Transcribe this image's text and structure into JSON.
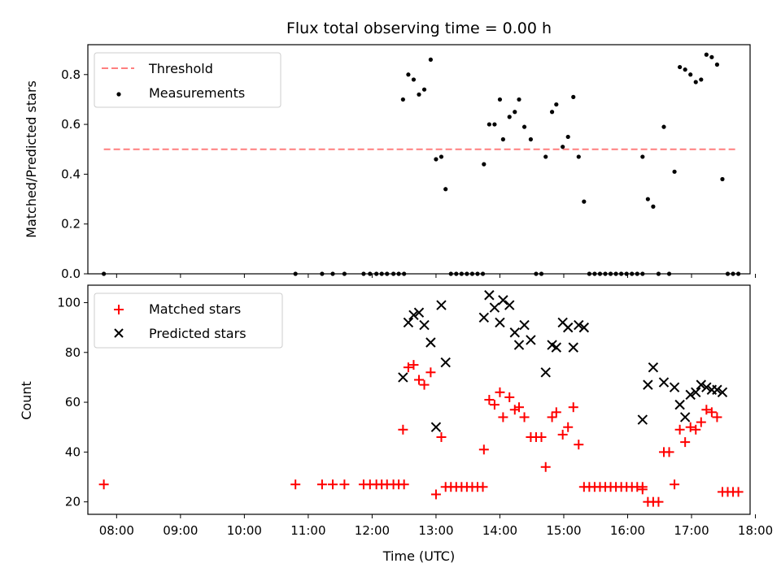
{
  "title": "Flux total observing time = 0.00 h",
  "xlabel": "Time (UTC)",
  "x_tick_labels": [
    "08:00",
    "09:00",
    "10:00",
    "11:00",
    "12:00",
    "13:00",
    "14:00",
    "15:00",
    "16:00",
    "17:00",
    "18:00"
  ],
  "colors": {
    "threshold": "#ff7f7f",
    "measurements": "#000000",
    "matched": "#ff0000",
    "predicted": "#000000"
  },
  "chart_data": [
    {
      "type": "scatter",
      "ylabel": "Matched/Predicted stars",
      "xlim": [
        "07:33",
        "17:55"
      ],
      "ylim": [
        0,
        0.92
      ],
      "y_ticks": [
        "0.0",
        "0.2",
        "0.4",
        "0.6",
        "0.8"
      ],
      "legend": {
        "placement": "upper-left",
        "entries": [
          "Threshold",
          "Measurements"
        ]
      },
      "threshold": {
        "name": "Threshold",
        "y": 0.5,
        "x_start": "07:48",
        "x_end": "17:42"
      },
      "series": [
        {
          "name": "Measurements",
          "points": [
            [
              "07:48",
              0
            ],
            [
              "10:48",
              0
            ],
            [
              "11:13",
              0
            ],
            [
              "11:23",
              0
            ],
            [
              "11:34",
              0
            ],
            [
              "11:52",
              0
            ],
            [
              "11:58",
              0
            ],
            [
              "12:04",
              0
            ],
            [
              "12:09",
              0
            ],
            [
              "12:14",
              0
            ],
            [
              "12:20",
              0
            ],
            [
              "12:25",
              0
            ],
            [
              "12:30",
              0
            ],
            [
              "12:29",
              0.7
            ],
            [
              "12:34",
              0.8
            ],
            [
              "12:39",
              0.78
            ],
            [
              "12:44",
              0.72
            ],
            [
              "12:49",
              0.74
            ],
            [
              "12:55",
              0.86
            ],
            [
              "13:00",
              0.46
            ],
            [
              "13:05",
              0.47
            ],
            [
              "13:09",
              0.34
            ],
            [
              "13:14",
              0
            ],
            [
              "13:19",
              0
            ],
            [
              "13:24",
              0
            ],
            [
              "13:29",
              0
            ],
            [
              "13:34",
              0
            ],
            [
              "13:39",
              0
            ],
            [
              "13:44",
              0
            ],
            [
              "13:45",
              0.44
            ],
            [
              "13:50",
              0.6
            ],
            [
              "13:55",
              0.6
            ],
            [
              "14:00",
              0.7
            ],
            [
              "14:03",
              0.54
            ],
            [
              "14:09",
              0.63
            ],
            [
              "14:14",
              0.65
            ],
            [
              "14:18",
              0.7
            ],
            [
              "14:23",
              0.59
            ],
            [
              "14:29",
              0.54
            ],
            [
              "14:34",
              0
            ],
            [
              "14:39",
              0
            ],
            [
              "14:43",
              0.47
            ],
            [
              "14:49",
              0.65
            ],
            [
              "14:53",
              0.68
            ],
            [
              "14:59",
              0.51
            ],
            [
              "15:04",
              0.55
            ],
            [
              "15:09",
              0.71
            ],
            [
              "15:14",
              0.47
            ],
            [
              "15:19",
              0.29
            ],
            [
              "15:24",
              0
            ],
            [
              "15:29",
              0
            ],
            [
              "15:34",
              0
            ],
            [
              "15:39",
              0
            ],
            [
              "15:44",
              0
            ],
            [
              "15:49",
              0
            ],
            [
              "15:54",
              0
            ],
            [
              "15:59",
              0
            ],
            [
              "16:04",
              0
            ],
            [
              "16:09",
              0
            ],
            [
              "16:14",
              0
            ],
            [
              "16:14",
              0.47
            ],
            [
              "16:19",
              0.3
            ],
            [
              "16:24",
              0.27
            ],
            [
              "16:29",
              0
            ],
            [
              "16:34",
              0.59
            ],
            [
              "16:39",
              0
            ],
            [
              "16:44",
              0.41
            ],
            [
              "16:49",
              0.83
            ],
            [
              "16:54",
              0.82
            ],
            [
              "16:59",
              0.8
            ],
            [
              "17:04",
              0.77
            ],
            [
              "17:09",
              0.78
            ],
            [
              "17:14",
              0.88
            ],
            [
              "17:19",
              0.87
            ],
            [
              "17:24",
              0.84
            ],
            [
              "17:29",
              0.38
            ],
            [
              "17:34",
              0
            ],
            [
              "17:39",
              0
            ],
            [
              "17:44",
              0
            ]
          ]
        }
      ]
    },
    {
      "type": "scatter",
      "ylabel": "Count",
      "xlabel": "Time (UTC)",
      "xlim": [
        "07:33",
        "17:55"
      ],
      "ylim": [
        15,
        107
      ],
      "y_ticks": [
        "20",
        "40",
        "60",
        "80",
        "100"
      ],
      "legend": {
        "placement": "upper-left",
        "entries": [
          "Matched stars",
          "Predicted stars"
        ]
      },
      "series": [
        {
          "name": "Matched stars",
          "points": [
            [
              "07:48",
              27
            ],
            [
              "10:48",
              27
            ],
            [
              "11:13",
              27
            ],
            [
              "11:23",
              27
            ],
            [
              "11:34",
              27
            ],
            [
              "11:52",
              27
            ],
            [
              "11:58",
              27
            ],
            [
              "12:04",
              27
            ],
            [
              "12:09",
              27
            ],
            [
              "12:14",
              27
            ],
            [
              "12:20",
              27
            ],
            [
              "12:25",
              27
            ],
            [
              "12:30",
              27
            ],
            [
              "12:29",
              49
            ],
            [
              "12:34",
              74
            ],
            [
              "12:39",
              75
            ],
            [
              "12:44",
              69
            ],
            [
              "12:49",
              67
            ],
            [
              "12:55",
              72
            ],
            [
              "13:00",
              23
            ],
            [
              "13:05",
              46
            ],
            [
              "13:09",
              26
            ],
            [
              "13:14",
              26
            ],
            [
              "13:19",
              26
            ],
            [
              "13:24",
              26
            ],
            [
              "13:29",
              26
            ],
            [
              "13:34",
              26
            ],
            [
              "13:39",
              26
            ],
            [
              "13:44",
              26
            ],
            [
              "13:45",
              41
            ],
            [
              "13:50",
              61
            ],
            [
              "13:55",
              59
            ],
            [
              "14:00",
              64
            ],
            [
              "14:03",
              54
            ],
            [
              "14:09",
              62
            ],
            [
              "14:14",
              57
            ],
            [
              "14:18",
              58
            ],
            [
              "14:23",
              54
            ],
            [
              "14:29",
              46
            ],
            [
              "14:34",
              46
            ],
            [
              "14:39",
              46
            ],
            [
              "14:43",
              34
            ],
            [
              "14:49",
              54
            ],
            [
              "14:53",
              56
            ],
            [
              "14:59",
              47
            ],
            [
              "15:04",
              50
            ],
            [
              "15:09",
              58
            ],
            [
              "15:14",
              43
            ],
            [
              "15:19",
              26
            ],
            [
              "15:24",
              26
            ],
            [
              "15:29",
              26
            ],
            [
              "15:34",
              26
            ],
            [
              "15:39",
              26
            ],
            [
              "15:44",
              26
            ],
            [
              "15:49",
              26
            ],
            [
              "15:54",
              26
            ],
            [
              "15:59",
              26
            ],
            [
              "16:04",
              26
            ],
            [
              "16:09",
              26
            ],
            [
              "16:14",
              26
            ],
            [
              "16:14",
              25
            ],
            [
              "16:19",
              20
            ],
            [
              "16:24",
              20
            ],
            [
              "16:29",
              20
            ],
            [
              "16:34",
              40
            ],
            [
              "16:39",
              40
            ],
            [
              "16:44",
              27
            ],
            [
              "16:49",
              49
            ],
            [
              "16:54",
              44
            ],
            [
              "16:59",
              50
            ],
            [
              "17:04",
              49
            ],
            [
              "17:09",
              52
            ],
            [
              "17:14",
              57
            ],
            [
              "17:19",
              56
            ],
            [
              "17:24",
              54
            ],
            [
              "17:29",
              24
            ],
            [
              "17:34",
              24
            ],
            [
              "17:39",
              24
            ],
            [
              "17:44",
              24
            ]
          ]
        },
        {
          "name": "Predicted stars",
          "points": [
            [
              "12:29",
              70
            ],
            [
              "12:34",
              92
            ],
            [
              "12:39",
              95
            ],
            [
              "12:44",
              96
            ],
            [
              "12:49",
              91
            ],
            [
              "12:55",
              84
            ],
            [
              "13:00",
              50
            ],
            [
              "13:05",
              99
            ],
            [
              "13:09",
              76
            ],
            [
              "13:45",
              94
            ],
            [
              "13:50",
              103
            ],
            [
              "13:55",
              98
            ],
            [
              "14:00",
              92
            ],
            [
              "14:03",
              101
            ],
            [
              "14:09",
              99
            ],
            [
              "14:14",
              88
            ],
            [
              "14:18",
              83
            ],
            [
              "14:23",
              91
            ],
            [
              "14:29",
              85
            ],
            [
              "14:43",
              72
            ],
            [
              "14:49",
              83
            ],
            [
              "14:53",
              82
            ],
            [
              "14:59",
              92
            ],
            [
              "15:04",
              90
            ],
            [
              "15:09",
              82
            ],
            [
              "15:14",
              91
            ],
            [
              "15:19",
              90
            ],
            [
              "16:14",
              53
            ],
            [
              "16:19",
              67
            ],
            [
              "16:24",
              74
            ],
            [
              "16:34",
              68
            ],
            [
              "16:44",
              66
            ],
            [
              "16:49",
              59
            ],
            [
              "16:54",
              54
            ],
            [
              "16:59",
              63
            ],
            [
              "17:04",
              64
            ],
            [
              "17:09",
              67
            ],
            [
              "17:14",
              66
            ],
            [
              "17:19",
              65
            ],
            [
              "17:24",
              65
            ],
            [
              "17:29",
              64
            ]
          ]
        }
      ]
    }
  ]
}
